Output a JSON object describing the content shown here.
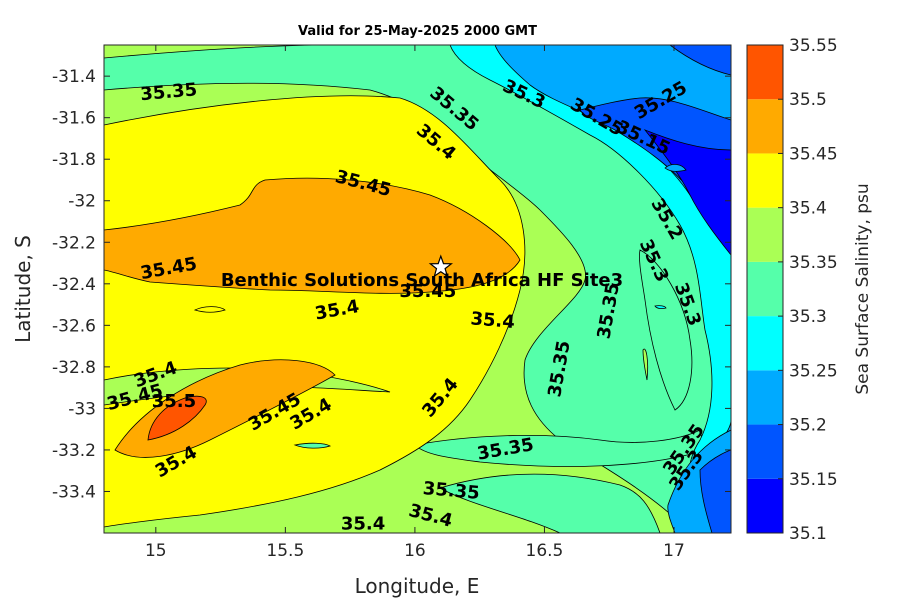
{
  "chart_data": {
    "type": "contour",
    "title": "Valid for 25-May-2025 2000 GMT",
    "xlabel": "Longitude, E",
    "ylabel": "Latitude, S",
    "colorbar_label": "Sea Surface Salinity, psu",
    "xlim": [
      14.8,
      17.22
    ],
    "ylim": [
      -33.6,
      -31.25
    ],
    "xticks": [
      15,
      15.5,
      16,
      16.5,
      17
    ],
    "yticks": [
      -31.4,
      -31.6,
      -31.8,
      -32,
      -32.2,
      -32.4,
      -32.6,
      -32.8,
      -33,
      -33.2,
      -33.4
    ],
    "levels": [
      35.1,
      35.15,
      35.2,
      35.25,
      35.3,
      35.35,
      35.4,
      35.45,
      35.5,
      35.55
    ],
    "level_colors": [
      "#0000ff",
      "#0055ff",
      "#00aaff",
      "#00ffff",
      "#55ffaa",
      "#aaff55",
      "#ffff00",
      "#ffaa00",
      "#ff5500"
    ],
    "site": {
      "label": "Benthic Solutions South Africa HF Site3",
      "lon": 16.1,
      "lat": -32.32
    },
    "contour_labels": [
      {
        "text": "35.35",
        "lon": 15.05,
        "lat": -31.48,
        "rot": -5
      },
      {
        "text": "35.35",
        "lon": 16.15,
        "lat": -31.56,
        "rot": 40
      },
      {
        "text": "35.3",
        "lon": 16.42,
        "lat": -31.49,
        "rot": 25
      },
      {
        "text": "35.25",
        "lon": 16.7,
        "lat": -31.6,
        "rot": 30
      },
      {
        "text": "35.25",
        "lon": 16.95,
        "lat": -31.52,
        "rot": -30
      },
      {
        "text": "35.15",
        "lon": 16.88,
        "lat": -31.7,
        "rot": 25
      },
      {
        "text": "35.4",
        "lon": 16.08,
        "lat": -31.72,
        "rot": 40
      },
      {
        "text": "35.45",
        "lon": 15.8,
        "lat": -31.92,
        "rot": 15
      },
      {
        "text": "35.2",
        "lon": 16.97,
        "lat": -32.09,
        "rot": 60
      },
      {
        "text": "35.3",
        "lon": 16.92,
        "lat": -32.29,
        "rot": 65
      },
      {
        "text": "35.3",
        "lon": 17.05,
        "lat": -32.5,
        "rot": 70
      },
      {
        "text": "35.35",
        "lon": 16.75,
        "lat": -32.53,
        "rot": -80
      },
      {
        "text": "35.45",
        "lon": 15.05,
        "lat": -32.33,
        "rot": -10
      },
      {
        "text": "35.45",
        "lon": 16.05,
        "lat": -32.44,
        "rot": 0
      },
      {
        "text": "35.4",
        "lon": 15.7,
        "lat": -32.53,
        "rot": -10
      },
      {
        "text": "35.4",
        "lon": 16.3,
        "lat": -32.58,
        "rot": 5
      },
      {
        "text": "35.35",
        "lon": 16.56,
        "lat": -32.81,
        "rot": -80
      },
      {
        "text": "35.4",
        "lon": 16.1,
        "lat": -32.95,
        "rot": -50
      },
      {
        "text": "35.4",
        "lon": 15.0,
        "lat": -32.84,
        "rot": -20
      },
      {
        "text": "35.45",
        "lon": 14.92,
        "lat": -32.95,
        "rot": -15
      },
      {
        "text": "35.5",
        "lon": 15.07,
        "lat": -32.97,
        "rot": 0
      },
      {
        "text": "35.45",
        "lon": 15.46,
        "lat": -33.02,
        "rot": -30
      },
      {
        "text": "35.4",
        "lon": 15.6,
        "lat": -33.03,
        "rot": -30
      },
      {
        "text": "35.35",
        "lon": 16.35,
        "lat": -33.2,
        "rot": -10
      },
      {
        "text": "35.4",
        "lon": 15.08,
        "lat": -33.26,
        "rot": -30
      },
      {
        "text": "35.35",
        "lon": 16.14,
        "lat": -33.4,
        "rot": 5
      },
      {
        "text": "35.4",
        "lon": 16.06,
        "lat": -33.52,
        "rot": 15
      },
      {
        "text": "35.4",
        "lon": 15.8,
        "lat": -33.56,
        "rot": 0
      },
      {
        "text": "35.35",
        "lon": 17.04,
        "lat": -33.2,
        "rot": -55
      },
      {
        "text": "35.3",
        "lon": 17.05,
        "lat": -33.3,
        "rot": -55
      }
    ]
  }
}
